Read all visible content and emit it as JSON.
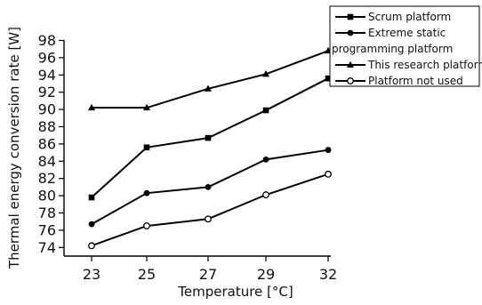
{
  "chart_data": {
    "type": "line",
    "title": "",
    "xlabel": "Temperature [°C]",
    "ylabel": "Thermal energy conversion rate [W]",
    "categories": [
      "23",
      "25",
      "27",
      "29",
      "32"
    ],
    "ylim": [
      73,
      98
    ],
    "yticks": [
      74,
      76,
      78,
      80,
      82,
      84,
      86,
      88,
      90,
      92,
      94,
      96,
      98
    ],
    "grid": false,
    "legend_position": "top-right",
    "series": [
      {
        "name": "Scrum platform",
        "marker": "square",
        "values": [
          79.8,
          85.6,
          86.7,
          89.9,
          93.6
        ]
      },
      {
        "name": "Extreme static programming platform",
        "legend_lines": [
          "Extreme static",
          "programming platform"
        ],
        "marker": "circle",
        "values": [
          76.7,
          80.3,
          81.0,
          84.2,
          85.3
        ]
      },
      {
        "name": "This research platform",
        "marker": "triangle",
        "values": [
          90.2,
          90.2,
          92.4,
          94.1,
          96.8
        ]
      },
      {
        "name": "Platform not used",
        "marker": "open-circle",
        "values": [
          74.2,
          76.5,
          77.3,
          80.1,
          82.5
        ]
      }
    ]
  }
}
